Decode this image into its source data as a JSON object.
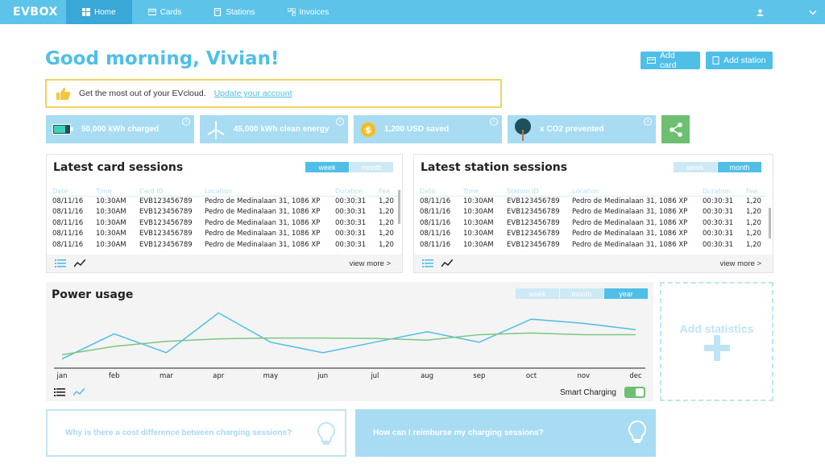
{
  "nav": {
    "logo": "EVBOX",
    "items": [
      {
        "label": "Home",
        "icon": "home-icon"
      },
      {
        "label": "Cards",
        "icon": "card-icon"
      },
      {
        "label": "Stations",
        "icon": "station-icon"
      },
      {
        "label": "Invoices",
        "icon": "invoices-icon"
      }
    ]
  },
  "greeting": "Good morning, Vivian!",
  "actions": {
    "add_card": "Add card",
    "add_station": "Add station"
  },
  "promo": {
    "text": "Get the most out of your EVcloud.",
    "link": "Update your account"
  },
  "stats": [
    {
      "label": "50,000 kWh charged",
      "icon": "battery-icon"
    },
    {
      "label": "45,000 kWh clean energy",
      "icon": "wind-turbine-icon"
    },
    {
      "label": "1,200 USD saved",
      "icon": "coin-icon"
    },
    {
      "label": "x CO2 prevented",
      "icon": "tree-icon"
    }
  ],
  "card_sessions": {
    "title": "Latest card sessions",
    "toggles": [
      "week",
      "month"
    ],
    "active_toggle": "week",
    "columns": [
      "Date",
      "Time",
      "Card ID",
      "Location",
      "Duration",
      "Fee"
    ],
    "rows": [
      [
        "08/11/16",
        "10:30AM",
        "EVB123456789",
        "Pedro de Medinalaan 31, 1086 XP",
        "00:30:31",
        "1,20"
      ],
      [
        "08/11/16",
        "10:30AM",
        "EVB123456789",
        "Pedro de Medinalaan 31, 1086 XP",
        "00:30:31",
        "1,20"
      ],
      [
        "08/11/16",
        "10:30AM",
        "EVB123456789",
        "Pedro de Medinalaan 31, 1086 XP",
        "00:30:31",
        "1,20"
      ],
      [
        "08/11/16",
        "10:30AM",
        "EVB123456789",
        "Pedro de Medinalaan 31, 1086 XP",
        "00:30:31",
        "1,20"
      ],
      [
        "08/11/16",
        "10:30AM",
        "EVB123456789",
        "Pedro de Medinalaan 31, 1086 XP",
        "00:30:31",
        "1,20"
      ]
    ],
    "view_more": "view more >"
  },
  "station_sessions": {
    "title": "Latest station sessions",
    "toggles": [
      "week",
      "month"
    ],
    "active_toggle": "month",
    "columns": [
      "Date",
      "Time",
      "Station ID",
      "Location",
      "Duration",
      "Fee"
    ],
    "rows": [
      [
        "08/11/16",
        "10:30AM",
        "EVB123456789",
        "Pedro de Medinalaan 31, 1086 XP",
        "00:30:31",
        "1,20"
      ],
      [
        "08/11/16",
        "10:30AM",
        "EVB123456789",
        "Pedro de Medinalaan 31, 1086 XP",
        "00:30:31",
        "1,20"
      ],
      [
        "08/11/16",
        "10:30AM",
        "EVB123456789",
        "Pedro de Medinalaan 31, 1086 XP",
        "00:30:31",
        "1,20"
      ],
      [
        "08/11/16",
        "10:30AM",
        "EVB123456789",
        "Pedro de Medinalaan 31, 1086 XP",
        "00:30:31",
        "1,20"
      ],
      [
        "08/11/16",
        "10:30AM",
        "EVB123456789",
        "Pedro de Medinalaan 31, 1086 XP",
        "00:30:31",
        "1,20"
      ]
    ],
    "view_more": "view more >"
  },
  "power": {
    "title": "Power usage",
    "toggles": [
      "week",
      "month",
      "year"
    ],
    "active_toggle": "year",
    "smart_charging_label": "Smart Charging",
    "smart_charging_on": true
  },
  "add_statistics": "Add statistics",
  "faq": [
    "Why is there a cost difference between charging sessions?",
    "How can I reimburse my charging sessions?"
  ],
  "chart_data": {
    "type": "line",
    "categories": [
      "jan",
      "feb",
      "mar",
      "apr",
      "may",
      "jun",
      "jul",
      "aug",
      "sep",
      "oct",
      "nov",
      "dec"
    ],
    "series": [
      {
        "values": [
          0.2,
          0.8,
          0.35,
          1.3,
          0.6,
          0.35,
          0.6,
          0.85,
          0.6,
          1.15,
          1.05,
          0.9
        ],
        "color": "#4fbfe8"
      },
      {
        "values": [
          0.3,
          0.5,
          0.62,
          0.68,
          0.7,
          0.7,
          0.69,
          0.65,
          0.78,
          0.82,
          0.78,
          0.78
        ],
        "color": "#7cc67f"
      }
    ],
    "ylim": [
      0,
      1.5
    ],
    "title": "Power usage",
    "grid": false
  },
  "colors": {
    "primary": "#5ec3e8",
    "accent": "#4fbfe8",
    "green": "#6fbf73",
    "stat_bg": "#a7dcf2",
    "promo_border": "#f3d35b"
  }
}
